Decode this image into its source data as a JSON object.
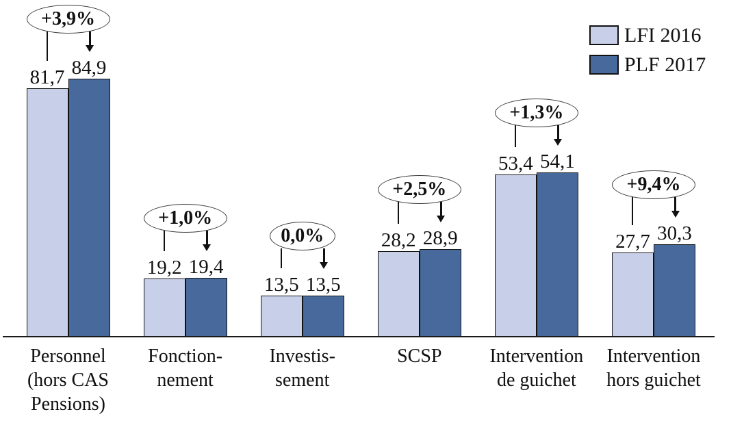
{
  "chart_data": {
    "type": "bar",
    "title": "",
    "xlabel": "",
    "ylabel": "",
    "grid": false,
    "legend_position": "top-right",
    "ylim": [
      0,
      90
    ],
    "categories": [
      "Personnel\n(hors CAS\nPensions)",
      "Fonction-\nnement",
      "Investis-\nsement",
      "SCSP",
      "Intervention\nde guichet",
      "Intervention\nhors guichet"
    ],
    "series": [
      {
        "name": "LFI 2016",
        "color": "#c8cfe8",
        "values": [
          81.7,
          19.2,
          13.5,
          28.2,
          53.4,
          27.7
        ],
        "labels": [
          "81,7",
          "19,2",
          "13,5",
          "28,2",
          "53,4",
          "27,7"
        ]
      },
      {
        "name": "PLF 2017",
        "color": "#47699b",
        "values": [
          84.9,
          19.4,
          13.5,
          28.9,
          54.1,
          30.3
        ],
        "labels": [
          "84,9",
          "19,4",
          "13,5",
          "28,9",
          "54,1",
          "30,3"
        ]
      }
    ],
    "annotations": [
      "+3,9%",
      "+1,0%",
      "0,0%",
      "+2,5%",
      "+1,3%",
      "+9,4%"
    ]
  }
}
